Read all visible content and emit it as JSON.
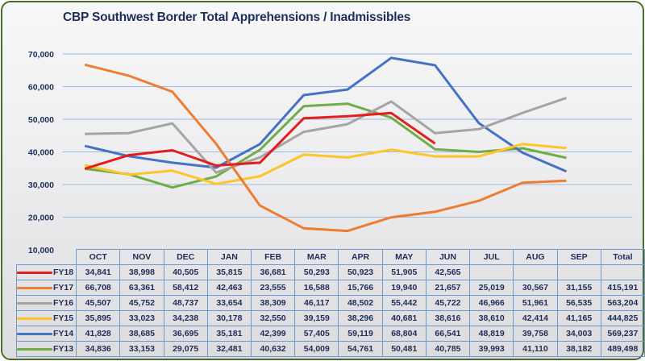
{
  "chart_data": {
    "type": "line",
    "title": "CBP Southwest Border Total Apprehensions / Inadmissibles",
    "xlabel": "",
    "ylabel": "",
    "ylim": [
      10000,
      70000
    ],
    "yticks": [
      "10,000",
      "20,000",
      "30,000",
      "40,000",
      "50,000",
      "60,000",
      "70,000"
    ],
    "ytick_values": [
      10000,
      20000,
      30000,
      40000,
      50000,
      60000,
      70000
    ],
    "grid": true,
    "legend": "data-table-left",
    "categories": [
      "OCT",
      "NOV",
      "DEC",
      "JAN",
      "FEB",
      "MAR",
      "APR",
      "MAY",
      "JUN",
      "JUL",
      "AUG",
      "SEP"
    ],
    "total_label": "Total",
    "series": [
      {
        "name": "FY18",
        "color": "#e41d1d",
        "values": [
          34841,
          38998,
          40505,
          35815,
          36681,
          50293,
          50923,
          51905,
          42565,
          null,
          null,
          null
        ],
        "labels": [
          "34,841",
          "38,998",
          "40,505",
          "35,815",
          "36,681",
          "50,293",
          "50,923",
          "51,905",
          "42,565",
          "",
          "",
          ""
        ],
        "total": ""
      },
      {
        "name": "FY17",
        "color": "#ed7d31",
        "values": [
          66708,
          63361,
          58412,
          42463,
          23555,
          16588,
          15766,
          19940,
          21657,
          25019,
          30567,
          31155
        ],
        "labels": [
          "66,708",
          "63,361",
          "58,412",
          "42,463",
          "23,555",
          "16,588",
          "15,766",
          "19,940",
          "21,657",
          "25,019",
          "30,567",
          "31,155"
        ],
        "total": "415,191"
      },
      {
        "name": "FY16",
        "color": "#a5a5a5",
        "values": [
          45507,
          45752,
          48737,
          33654,
          38309,
          46117,
          48502,
          55442,
          45722,
          46966,
          51961,
          56535
        ],
        "labels": [
          "45,507",
          "45,752",
          "48,737",
          "33,654",
          "38,309",
          "46,117",
          "48,502",
          "55,442",
          "45,722",
          "46,966",
          "51,961",
          "56,535"
        ],
        "total": "563,204"
      },
      {
        "name": "FY15",
        "color": "#ffc425",
        "values": [
          35895,
          33023,
          34238,
          30178,
          32550,
          39159,
          38296,
          40681,
          38616,
          38610,
          42414,
          41165
        ],
        "labels": [
          "35,895",
          "33,023",
          "34,238",
          "30,178",
          "32,550",
          "39,159",
          "38,296",
          "40,681",
          "38,616",
          "38,610",
          "42,414",
          "41,165"
        ],
        "total": "444,825"
      },
      {
        "name": "FY14",
        "color": "#4472c4",
        "values": [
          41828,
          38685,
          36695,
          35181,
          42399,
          57405,
          59119,
          68804,
          66541,
          48819,
          39758,
          34003
        ],
        "labels": [
          "41,828",
          "38,685",
          "36,695",
          "35,181",
          "42,399",
          "57,405",
          "59,119",
          "68,804",
          "66,541",
          "48,819",
          "39,758",
          "34,003"
        ],
        "total": "569,237"
      },
      {
        "name": "FY13",
        "color": "#70ad47",
        "values": [
          34836,
          33153,
          29075,
          32481,
          40632,
          54009,
          54761,
          50481,
          40785,
          39993,
          41110,
          38182
        ],
        "labels": [
          "34,836",
          "33,153",
          "29,075",
          "32,481",
          "40,632",
          "54,009",
          "54,761",
          "50,481",
          "40,785",
          "39,993",
          "41,110",
          "38,182"
        ],
        "total": "489,498"
      }
    ]
  }
}
